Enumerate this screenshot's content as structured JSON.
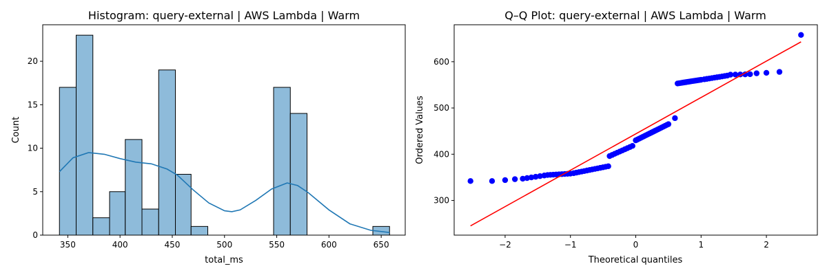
{
  "chart_data": [
    {
      "type": "bar",
      "subtype": "histogram_with_kde",
      "title": "Histogram: query-external | AWS Lambda | Warm",
      "xlabel": "total_ms",
      "ylabel": "Count",
      "xlim": [
        326,
        673
      ],
      "ylim": [
        0,
        24.2
      ],
      "xticks": [
        350,
        400,
        450,
        500,
        550,
        600,
        650
      ],
      "yticks": [
        0,
        5,
        10,
        15,
        20
      ],
      "bar_color": "#8ebbda",
      "edge_color": "#000000",
      "kde_color": "#1f77b4",
      "bins": [
        {
          "x0": 342,
          "x1": 358,
          "count": 17
        },
        {
          "x0": 358,
          "x1": 374,
          "count": 23
        },
        {
          "x0": 374,
          "x1": 390,
          "count": 2
        },
        {
          "x0": 390,
          "x1": 405,
          "count": 5
        },
        {
          "x0": 405,
          "x1": 421,
          "count": 11
        },
        {
          "x0": 421,
          "x1": 437,
          "count": 3
        },
        {
          "x0": 437,
          "x1": 453,
          "count": 19
        },
        {
          "x0": 453,
          "x1": 468,
          "count": 7
        },
        {
          "x0": 468,
          "x1": 484,
          "count": 1
        },
        {
          "x0": 547,
          "x1": 563,
          "count": 17
        },
        {
          "x0": 563,
          "x1": 579,
          "count": 14
        },
        {
          "x0": 642,
          "x1": 658,
          "count": 1
        }
      ],
      "kde": {
        "x": [
          342,
          355,
          370,
          385,
          400,
          415,
          430,
          445,
          455,
          470,
          485,
          500,
          507,
          515,
          530,
          545,
          560,
          570,
          580,
          600,
          620,
          640,
          658
        ],
        "y": [
          7.3,
          8.9,
          9.5,
          9.3,
          8.8,
          8.4,
          8.2,
          7.6,
          6.9,
          5.2,
          3.7,
          2.8,
          2.7,
          2.9,
          4.0,
          5.3,
          6.0,
          5.7,
          4.9,
          2.9,
          1.3,
          0.55,
          0.3
        ]
      }
    },
    {
      "type": "scatter",
      "subtype": "qq_plot",
      "title": "Q–Q Plot: query-external | AWS Lambda | Warm",
      "xlabel": "Theoretical quantiles",
      "ylabel": "Ordered Values",
      "xlim": [
        -2.78,
        2.78
      ],
      "ylim": [
        225,
        680
      ],
      "xticks": [
        -2,
        -1,
        0,
        1,
        2
      ],
      "yticks": [
        300,
        400,
        500,
        600
      ],
      "point_color": "#0000ff",
      "line_color": "#ff0000",
      "fit_line": {
        "x": [
          -2.53,
          2.53
        ],
        "y": [
          245,
          643
        ]
      },
      "segments": [
        {
          "x0": -2.53,
          "x1": -2.53,
          "y0": 342,
          "y1": 342,
          "n": 1
        },
        {
          "x0": -2.2,
          "x1": -2.2,
          "y0": 342,
          "y1": 342,
          "n": 1
        },
        {
          "x0": -2.0,
          "x1": -2.0,
          "y0": 344,
          "y1": 344,
          "n": 1
        },
        {
          "x0": -1.85,
          "x1": -1.85,
          "y0": 346,
          "y1": 346,
          "n": 1
        },
        {
          "x0": -1.73,
          "x1": -1.4,
          "y0": 347,
          "y1": 354,
          "n": 6
        },
        {
          "x0": -1.35,
          "x1": -1.0,
          "y0": 355,
          "y1": 358,
          "n": 9
        },
        {
          "x0": -0.95,
          "x1": -0.42,
          "y0": 359,
          "y1": 374,
          "n": 14
        },
        {
          "x0": -0.4,
          "x1": -0.05,
          "y0": 396,
          "y1": 418,
          "n": 10
        },
        {
          "x0": 0.0,
          "x1": 0.5,
          "y0": 430,
          "y1": 465,
          "n": 20
        },
        {
          "x0": 0.6,
          "x1": 0.6,
          "y0": 478,
          "y1": 478,
          "n": 1
        },
        {
          "x0": 0.64,
          "x1": 1.0,
          "y0": 553,
          "y1": 561,
          "n": 15
        },
        {
          "x0": 1.05,
          "x1": 1.4,
          "y0": 562,
          "y1": 570,
          "n": 10
        },
        {
          "x0": 1.45,
          "x1": 1.75,
          "y0": 572,
          "y1": 573,
          "n": 5
        },
        {
          "x0": 1.85,
          "x1": 1.85,
          "y0": 575,
          "y1": 575,
          "n": 1
        },
        {
          "x0": 2.0,
          "x1": 2.0,
          "y0": 576,
          "y1": 576,
          "n": 1
        },
        {
          "x0": 2.2,
          "x1": 2.2,
          "y0": 578,
          "y1": 578,
          "n": 1
        },
        {
          "x0": 2.53,
          "x1": 2.53,
          "y0": 658,
          "y1": 658,
          "n": 1
        }
      ]
    }
  ]
}
